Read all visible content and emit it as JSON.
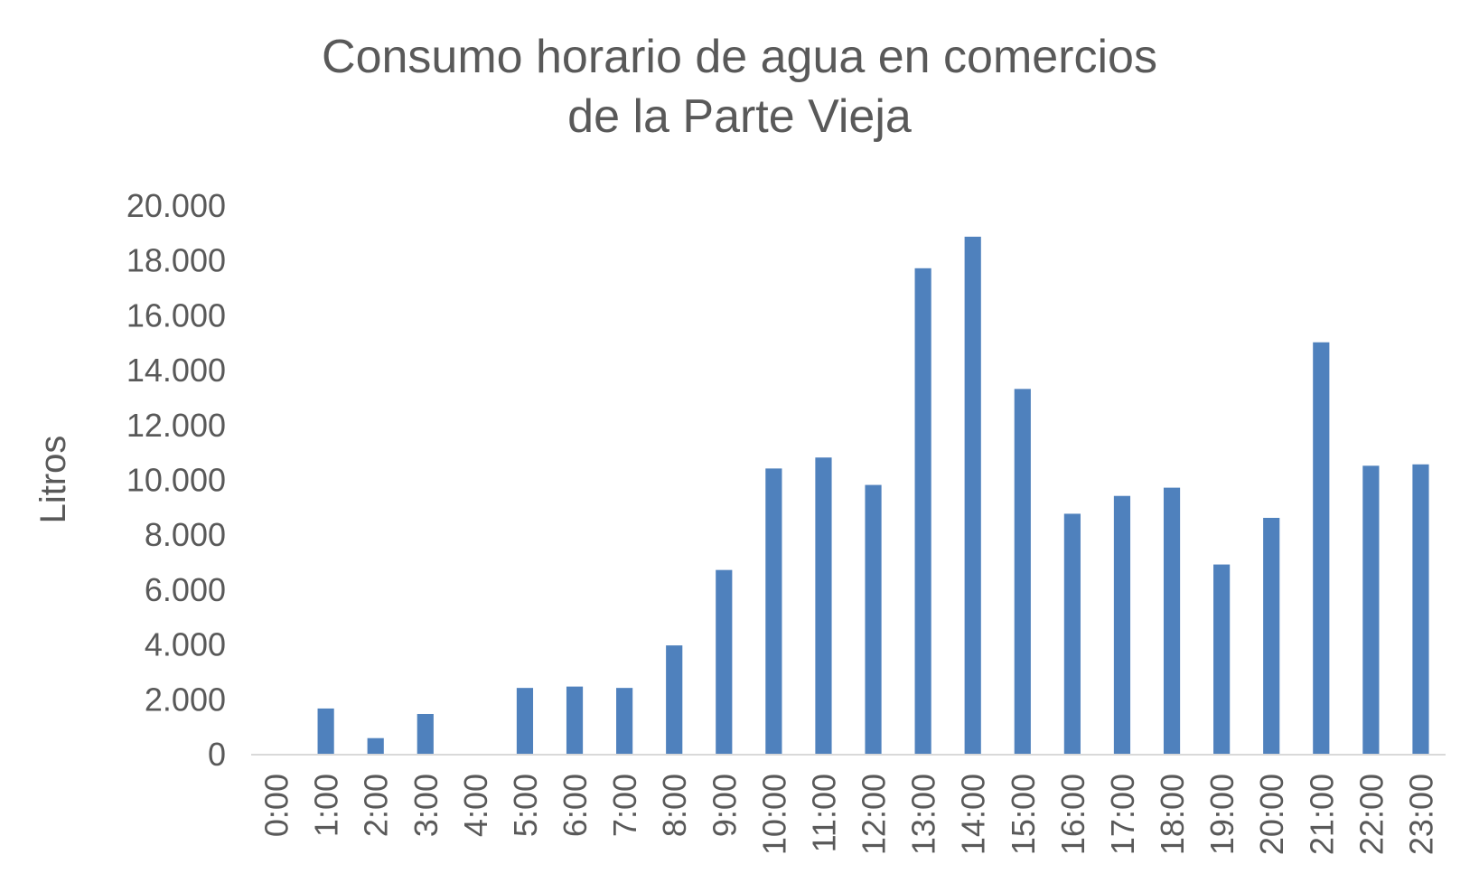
{
  "chart_data": {
    "type": "bar",
    "title_lines": [
      "Consumo horario de agua en comercios",
      "de la Parte Vieja"
    ],
    "xlabel": "",
    "ylabel": "Litros",
    "ylim": [
      0,
      20000
    ],
    "yticks": [
      0,
      2000,
      4000,
      6000,
      8000,
      10000,
      12000,
      14000,
      16000,
      18000,
      20000
    ],
    "ytick_labels": [
      "0",
      "2.000",
      "4.000",
      "6.000",
      "8.000",
      "10.000",
      "12.000",
      "14.000",
      "16.000",
      "18.000",
      "20.000"
    ],
    "categories": [
      "0:00",
      "1:00",
      "2:00",
      "3:00",
      "4:00",
      "5:00",
      "6:00",
      "7:00",
      "8:00",
      "9:00",
      "10:00",
      "11:00",
      "12:00",
      "13:00",
      "14:00",
      "15:00",
      "16:00",
      "17:00",
      "18:00",
      "19:00",
      "20:00",
      "21:00",
      "22:00",
      "23:00"
    ],
    "values": [
      0,
      1650,
      570,
      1450,
      0,
      2400,
      2450,
      2400,
      3950,
      6700,
      10400,
      10800,
      9800,
      17700,
      18850,
      13300,
      8750,
      9400,
      9700,
      6900,
      8600,
      15000,
      10500,
      10550
    ],
    "bar_color": "#4f81bd",
    "axis_color": "#d9d9d9",
    "grid": false,
    "legend": "none"
  }
}
